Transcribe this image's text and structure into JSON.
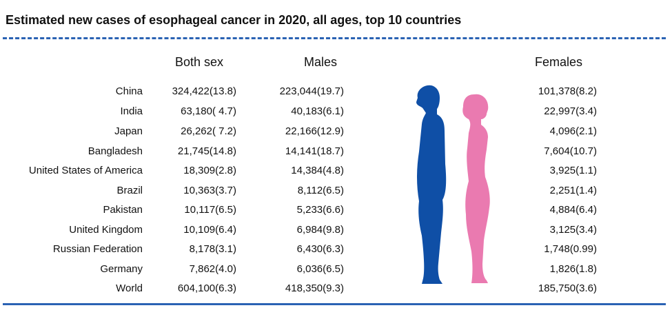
{
  "title": "Estimated new cases of esophageal cancer in 2020, all ages, top 10 countries",
  "headers": {
    "both": "Both sex",
    "males": "Males",
    "females": "Females"
  },
  "rows": [
    {
      "country": "China",
      "both": "324,422(13.8)",
      "males": "223,044(19.7)",
      "females": "101,378(8.2)"
    },
    {
      "country": "India",
      "both": "63,180( 4.7)",
      "males": "40,183(6.1)",
      "females": "22,997(3.4)"
    },
    {
      "country": "Japan",
      "both": "26,262( 7.2)",
      "males": "22,166(12.9)",
      "females": "4,096(2.1)"
    },
    {
      "country": "Bangladesh",
      "both": "21,745(14.8)",
      "males": "14,141(18.7)",
      "females": "7,604(10.7)"
    },
    {
      "country": "United States of America",
      "both": "18,309(2.8)",
      "males": "14,384(4.8)",
      "females": "3,925(1.1)"
    },
    {
      "country": "Brazil",
      "both": "10,363(3.7)",
      "males": "8,112(6.5)",
      "females": "2,251(1.4)"
    },
    {
      "country": "Pakistan",
      "both": "10,117(6.5)",
      "males": "5,233(6.6)",
      "females": "4,884(6.4)"
    },
    {
      "country": "United Kingdom",
      "both": "10,109(6.4)",
      "males": "6,984(9.8)",
      "females": "3,125(3.4)"
    },
    {
      "country": "Russian Federation",
      "both": "8,178(3.1)",
      "males": "6,430(6.3)",
      "females": "1,748(0.99)"
    },
    {
      "country": "Germany",
      "both": "7,862(4.0)",
      "males": "6,036(6.5)",
      "females": "1,826(1.8)"
    },
    {
      "country": "World",
      "both": "604,100(6.3)",
      "males": "418,350(9.3)",
      "females": "185,750(3.6)"
    }
  ],
  "colors": {
    "accent": "#2a62b3",
    "male": "#0f4fa6",
    "female": "#ea7ab0"
  },
  "icons": {
    "male": "male-silhouette-icon",
    "female": "female-silhouette-icon"
  }
}
